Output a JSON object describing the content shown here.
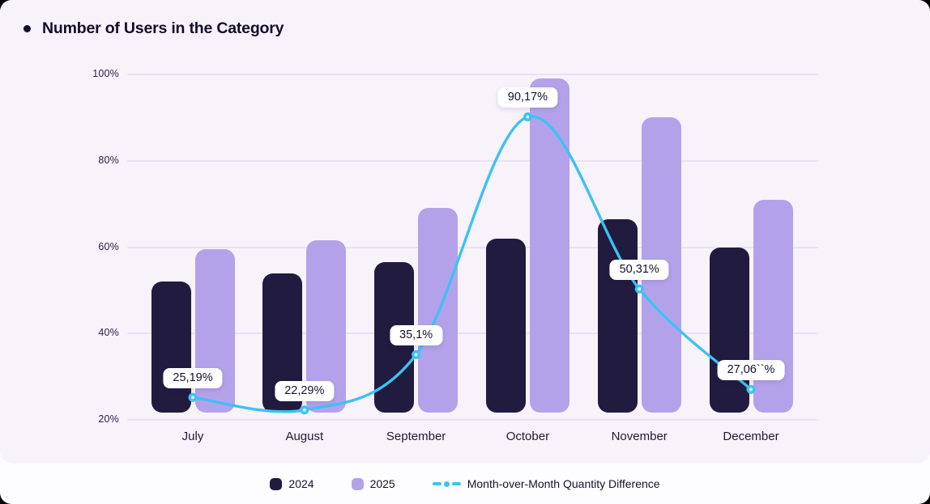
{
  "title": "Number of Users in the Category",
  "colors": {
    "panel_background": "#f8f2fb",
    "card_background": "#fdfcff",
    "gridline": "#e9e2f4",
    "bar_2024": "#211b40",
    "bar_2025": "#b3a2ea",
    "line": "#3ec1f3",
    "label_pill_background": "#ffffff",
    "title_text": "#120d2a"
  },
  "chart_data": {
    "type": "bar",
    "title": "Number of Users in the Category",
    "categories": [
      "July",
      "August",
      "September",
      "October",
      "November",
      "December"
    ],
    "series": [
      {
        "name": "2024",
        "color": "#211b40",
        "values": [
          52,
          54,
          56.5,
          62,
          66.5,
          60
        ]
      },
      {
        "name": "2025",
        "color": "#b3a2ea",
        "values": [
          59.5,
          61.5,
          69,
          99,
          90,
          71
        ]
      }
    ],
    "line_series": {
      "name": "Month-over-Month Quantity Difference",
      "type": "line",
      "color": "#3ec1f3",
      "values": [
        25.19,
        22.29,
        35.1,
        90.17,
        50.31,
        27.06
      ],
      "point_labels": [
        "25,19%",
        "22,29%",
        "35,1%",
        "90,17%",
        "50,31%",
        "27,06``%"
      ]
    },
    "y_axis": {
      "min": 20,
      "max": 100,
      "ticks": [
        {
          "value": 20,
          "label": "20%"
        },
        {
          "value": 40,
          "label": "40%"
        },
        {
          "value": 60,
          "label": "60%"
        },
        {
          "value": 80,
          "label": "80%"
        },
        {
          "value": 100,
          "label": "100%"
        }
      ]
    },
    "xlabel": "",
    "ylabel": "",
    "grid": "horizontal",
    "legend_position": "bottom"
  },
  "legend": {
    "items": [
      {
        "label": "2024",
        "swatch": "rounded-square",
        "color": "#211b40"
      },
      {
        "label": "2025",
        "swatch": "rounded-square",
        "color": "#b3a2ea"
      },
      {
        "label": "Month-over-Month Quantity Difference",
        "swatch": "dashed-line",
        "color": "#3ec1f3"
      }
    ]
  }
}
